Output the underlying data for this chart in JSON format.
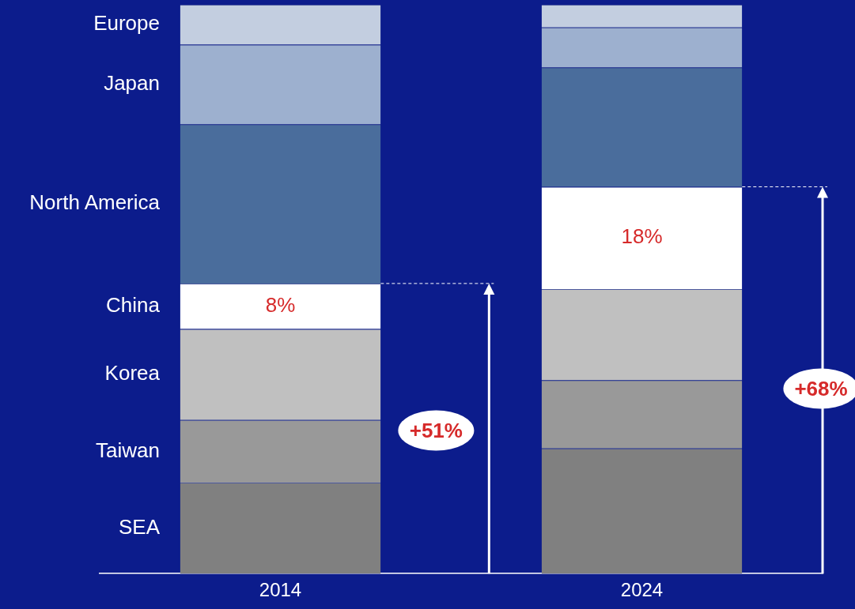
{
  "chart_data": {
    "type": "bar",
    "stacked": true,
    "legend": false,
    "grid": false,
    "ylim": [
      0,
      100
    ],
    "categories": [
      "2014",
      "2024"
    ],
    "series": [
      {
        "name": "SEA",
        "color": "#808080",
        "values": [
          16,
          22
        ]
      },
      {
        "name": "Taiwan",
        "color": "#999999",
        "values": [
          11,
          12
        ]
      },
      {
        "name": "Korea",
        "color": "#c0c0c0",
        "values": [
          16,
          16
        ]
      },
      {
        "name": "China",
        "color": "#ffffff",
        "values": [
          8,
          18
        ],
        "value_labels": [
          "8%",
          "18%"
        ]
      },
      {
        "name": "North America",
        "color": "#4a6d9c",
        "values": [
          28,
          21
        ]
      },
      {
        "name": "Japan",
        "color": "#9db0cf",
        "values": [
          14,
          7
        ]
      },
      {
        "name": "Europe",
        "color": "#c3cee0",
        "values": [
          7,
          4
        ]
      }
    ],
    "annotations": [
      "+51%",
      "+68%"
    ]
  }
}
